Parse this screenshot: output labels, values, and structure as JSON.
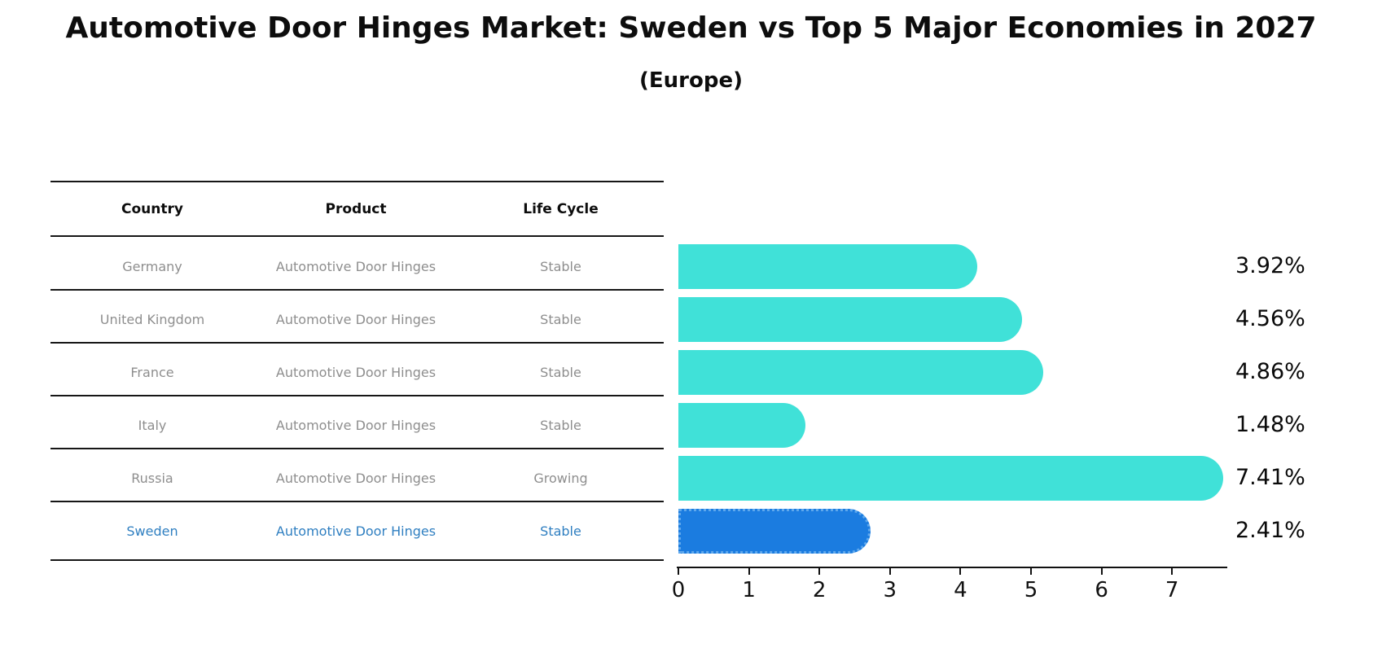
{
  "title": "Automotive Door Hinges Market: Sweden vs Top 5 Major Economies in 2027",
  "subtitle": "(Europe)",
  "table": {
    "headers": [
      "Country",
      "Product",
      "Life Cycle"
    ],
    "rows": [
      {
        "country": "Germany",
        "product": "Automotive Door Hinges",
        "life_cycle": "Stable",
        "highlight": false
      },
      {
        "country": "United Kingdom",
        "product": "Automotive Door Hinges",
        "life_cycle": "Stable",
        "highlight": false
      },
      {
        "country": "France",
        "product": "Automotive Door Hinges",
        "life_cycle": "Stable",
        "highlight": false
      },
      {
        "country": "Italy",
        "product": "Automotive Door Hinges",
        "life_cycle": "Stable",
        "highlight": false
      },
      {
        "country": "Russia",
        "product": "Automotive Door Hinges",
        "life_cycle": "Growing",
        "highlight": false
      },
      {
        "country": "Sweden",
        "product": "Automotive Door Hinges",
        "life_cycle": "Stable",
        "highlight": true
      }
    ]
  },
  "chart_data": {
    "type": "bar",
    "orientation": "horizontal",
    "title": "Automotive Door Hinges Market: Sweden vs Top 5 Major Economies in 2027",
    "subtitle": "(Europe)",
    "categories": [
      "Germany",
      "United Kingdom",
      "France",
      "Italy",
      "Russia",
      "Sweden"
    ],
    "values": [
      3.92,
      4.56,
      4.86,
      1.48,
      7.41,
      2.41
    ],
    "value_labels": [
      "3.92%",
      "4.56%",
      "4.86%",
      "1.48%",
      "7.41%",
      "2.41%"
    ],
    "highlight_index": 5,
    "xlabel": "",
    "ylabel": "",
    "xlim": [
      0,
      7.8
    ],
    "x_ticks": [
      0,
      1,
      2,
      3,
      4,
      5,
      6,
      7
    ],
    "x_tick_labels": [
      "0",
      "1",
      "2",
      "3",
      "4",
      "5",
      "6",
      "7"
    ],
    "grid": false,
    "legend": false,
    "bar_color": "#40e1d8",
    "highlight_bar_color": "#1b7ce0",
    "highlight_border_color": "#5fa8ec",
    "highlight_text_color": "#2f7fc1",
    "text_color": "#8e8e8e"
  }
}
